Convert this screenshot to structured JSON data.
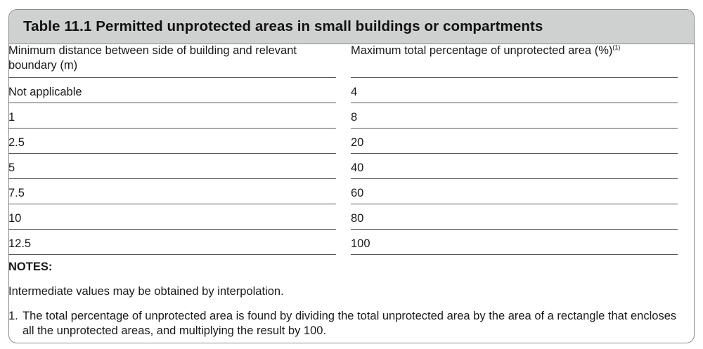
{
  "table": {
    "title": "Table 11.1  Permitted unprotected areas in small buildings or compartments",
    "col1_header": "Minimum distance between side of building and relevant boundary (m)",
    "col2_header": "Maximum total percentage of unprotected area (%)",
    "col2_header_note": "(1)",
    "rows": [
      {
        "distance": "Not applicable",
        "percentage": "4"
      },
      {
        "distance": "1",
        "percentage": "8"
      },
      {
        "distance": "2.5",
        "percentage": "20"
      },
      {
        "distance": "5",
        "percentage": "40"
      },
      {
        "distance": "7.5",
        "percentage": "60"
      },
      {
        "distance": "10",
        "percentage": "80"
      },
      {
        "distance": "12.5",
        "percentage": "100"
      }
    ]
  },
  "notes": {
    "heading": "NOTES:",
    "intermediate": "Intermediate values may be obtained by interpolation.",
    "note1_number": "1.",
    "note1_text": "The total percentage of unprotected area is found by dividing the total unprotected area by the area of a rectangle that encloses all the unprotected areas, and multiplying the result by 100."
  }
}
